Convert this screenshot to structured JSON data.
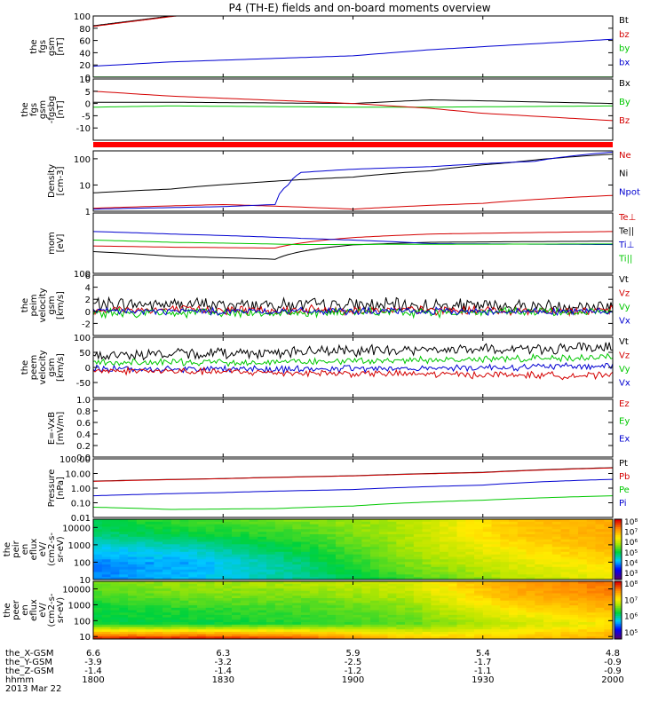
{
  "title": "P4 (TH-E) fields and on-board moments overview",
  "colors": {
    "black": "#000000",
    "red": "#d40000",
    "green": "#00c800",
    "blue": "#0000d0"
  },
  "chart_data": [
    {
      "type": "line",
      "ylabel": [
        "the",
        "fgs",
        "gsm",
        "[nT]"
      ],
      "ylim": [
        0,
        100
      ],
      "yticks": [
        {
          "v": 0,
          "label": "0"
        },
        {
          "v": 20,
          "label": "20"
        },
        {
          "v": 40,
          "label": "40"
        },
        {
          "v": 60,
          "label": "60"
        },
        {
          "v": 80,
          "label": "80"
        },
        {
          "v": 100,
          "label": "100"
        }
      ],
      "legend": [
        {
          "label": "Bt",
          "color": "#000000"
        },
        {
          "label": "bz",
          "color": "#d40000"
        },
        {
          "label": "by",
          "color": "#00c800"
        },
        {
          "label": "bx",
          "color": "#0000d0"
        }
      ],
      "series": [
        {
          "name": "Bt",
          "color": "#000000",
          "x": [
            1800,
            1830,
            1836
          ],
          "y": [
            84,
            100,
            103
          ]
        },
        {
          "name": "bz",
          "color": "#d40000",
          "x": [
            1800,
            1830,
            1836
          ],
          "y": [
            83,
            99,
            102
          ]
        },
        {
          "name": "by",
          "color": "#00c800",
          "x": [
            1800,
            2000
          ],
          "y": [
            0.5,
            0.5
          ]
        },
        {
          "name": "bx",
          "color": "#0000d0",
          "x": [
            1800,
            1830,
            1900,
            1930,
            2000
          ],
          "y": [
            18,
            25,
            35,
            45,
            62
          ]
        }
      ]
    },
    {
      "type": "line",
      "ylabel": [
        "the",
        "fgs",
        "gsm",
        "-fgsbg",
        "[nT]"
      ],
      "ylim": [
        -15,
        10
      ],
      "yticks": [
        {
          "v": -10,
          "label": "-10"
        },
        {
          "v": -5,
          "label": "-5"
        },
        {
          "v": 0,
          "label": "0"
        },
        {
          "v": 5,
          "label": "5"
        },
        {
          "v": 10,
          "label": "10"
        }
      ],
      "legend": [
        {
          "label": "Bx",
          "color": "#000000"
        },
        {
          "label": "By",
          "color": "#00c800"
        },
        {
          "label": "Bz",
          "color": "#d40000"
        }
      ],
      "flag_bar": true,
      "series": [
        {
          "name": "Bx",
          "color": "#000000",
          "x": [
            1800,
            1830,
            1900,
            1930,
            2000
          ],
          "y": [
            0.5,
            0.5,
            0,
            1.5,
            0
          ]
        },
        {
          "name": "By",
          "color": "#00c800",
          "x": [
            1800,
            1830,
            1900,
            1930,
            2000
          ],
          "y": [
            -1.5,
            -1,
            -1.5,
            -1.5,
            -1
          ]
        },
        {
          "name": "Bz",
          "color": "#d40000",
          "x": [
            1800,
            1830,
            1900,
            1930,
            1950,
            2000
          ],
          "y": [
            5,
            3,
            0,
            -2,
            -4,
            -7
          ]
        }
      ]
    },
    {
      "type": "line",
      "ylabel": [
        "Density",
        "[cm-3]"
      ],
      "scale": "log",
      "ylim": [
        1,
        200
      ],
      "yticks": [
        {
          "v": 1,
          "label": "1"
        },
        {
          "v": 10,
          "label": "10"
        },
        {
          "v": 100,
          "label": "100"
        }
      ],
      "legend": [
        {
          "label": "Ne",
          "color": "#d40000"
        },
        {
          "label": "Ni",
          "color": "#000000"
        },
        {
          "label": "Npot",
          "color": "#0000d0"
        }
      ],
      "series": [
        {
          "name": "Ne",
          "color": "#d40000",
          "x": [
            1800,
            1850,
            1900,
            1950,
            2000
          ],
          "y": [
            1.3,
            1.8,
            1.2,
            2,
            4
          ]
        },
        {
          "name": "Ni",
          "color": "#000000",
          "x": [
            1800,
            1830,
            1860,
            1900,
            1930,
            1960,
            2000
          ],
          "y": [
            5,
            7,
            12,
            20,
            35,
            70,
            150
          ]
        },
        {
          "name": "Npot",
          "color": "#0000d0",
          "x": [
            1800,
            1850,
            1870,
            1875,
            1880,
            1900,
            1930,
            1970,
            2000
          ],
          "y": [
            1.2,
            1.5,
            1.8,
            10,
            30,
            40,
            50,
            80,
            180
          ]
        }
      ]
    },
    {
      "type": "line",
      "ylabel": [
        "mom",
        "[eV]"
      ],
      "scale": "log",
      "ylim": [
        100,
        100000
      ],
      "yticks": [
        {
          "v": 100,
          "label": "100"
        }
      ],
      "legend": [
        {
          "label": "Te⊥",
          "color": "#d40000"
        },
        {
          "label": "Te||",
          "color": "#000000"
        },
        {
          "label": "Ti⊥",
          "color": "#0000d0"
        },
        {
          "label": "Ti||",
          "color": "#00c800"
        }
      ],
      "series": [
        {
          "name": "Te⊥",
          "color": "#d40000",
          "x": [
            1800,
            1830,
            1870,
            1900,
            1930,
            2000
          ],
          "y": [
            2300,
            2000,
            1800,
            6000,
            9000,
            12000
          ]
        },
        {
          "name": "Te||",
          "color": "#000000",
          "x": [
            1800,
            1830,
            1870,
            1900,
            1930,
            2000
          ],
          "y": [
            1200,
            700,
            500,
            2600,
            3500,
            4000
          ]
        },
        {
          "name": "Ti⊥",
          "color": "#0000d0",
          "x": [
            1800,
            1830,
            1880,
            1930,
            2000
          ],
          "y": [
            12000,
            9000,
            5500,
            3000,
            2700
          ]
        },
        {
          "name": "Ti||",
          "color": "#00c800",
          "x": [
            1800,
            1830,
            1880,
            1930,
            2000
          ],
          "y": [
            4500,
            3500,
            2700,
            2800,
            2900
          ]
        }
      ]
    },
    {
      "type": "line",
      "ylabel": [
        "the",
        "peim",
        "velocity",
        "gsm",
        "[km/s]"
      ],
      "ylim": [
        -4,
        6
      ],
      "yticks": [
        {
          "v": -2,
          "label": "-2"
        },
        {
          "v": 0,
          "label": "0"
        },
        {
          "v": 2,
          "label": "2"
        },
        {
          "v": 4,
          "label": "4"
        },
        {
          "v": 6,
          "label": "6"
        }
      ],
      "legend": [
        {
          "label": "Vt",
          "color": "#000000"
        },
        {
          "label": "Vz",
          "color": "#d40000"
        },
        {
          "label": "Vy",
          "color": "#00c800"
        },
        {
          "label": "Vx",
          "color": "#0000d0"
        }
      ],
      "series": [
        {
          "name": "Vt",
          "color": "#000000",
          "x": [
            1800,
            1900,
            2000
          ],
          "y": [
            1.2,
            1,
            0.8
          ],
          "noise": 1.4
        },
        {
          "name": "Vz",
          "color": "#d40000",
          "x": [
            1800,
            1900,
            2000
          ],
          "y": [
            0.3,
            0.2,
            0.1
          ],
          "noise": 0.9
        },
        {
          "name": "Vy",
          "color": "#00c800",
          "x": [
            1800,
            1900,
            2000
          ],
          "y": [
            -0.3,
            -0.2,
            -0.1
          ],
          "noise": 0.9
        },
        {
          "name": "Vx",
          "color": "#0000d0",
          "x": [
            1800,
            1900,
            2000
          ],
          "y": [
            0,
            0,
            0
          ],
          "noise": 0.7
        }
      ]
    },
    {
      "type": "line",
      "ylabel": [
        "the",
        "peem",
        "velocity",
        "gsm",
        "[km/s]"
      ],
      "ylim": [
        -100,
        100
      ],
      "yticks": [
        {
          "v": -50,
          "label": "-50"
        },
        {
          "v": 0,
          "label": "0"
        },
        {
          "v": 50,
          "label": "50"
        },
        {
          "v": 100,
          "label": "100"
        }
      ],
      "legend": [
        {
          "label": "Vt",
          "color": "#000000"
        },
        {
          "label": "Vz",
          "color": "#d40000"
        },
        {
          "label": "Vy",
          "color": "#00c800"
        },
        {
          "label": "Vx",
          "color": "#0000d0"
        }
      ],
      "series": [
        {
          "name": "Vt",
          "color": "#000000",
          "x": [
            1800,
            1900,
            2000
          ],
          "y": [
            40,
            55,
            65
          ],
          "noise": 22
        },
        {
          "name": "Vy",
          "color": "#00c800",
          "x": [
            1800,
            1900,
            2000
          ],
          "y": [
            15,
            20,
            35
          ],
          "noise": 14
        },
        {
          "name": "Vx",
          "color": "#0000d0",
          "x": [
            1800,
            1900,
            2000
          ],
          "y": [
            -5,
            -5,
            5
          ],
          "noise": 14
        },
        {
          "name": "Vz",
          "color": "#d40000",
          "x": [
            1800,
            1900,
            2000
          ],
          "y": [
            -10,
            -20,
            -28
          ],
          "noise": 14
        }
      ]
    },
    {
      "type": "line",
      "ylabel": [
        "E=-VxB",
        "[mV/m]"
      ],
      "ylim": [
        0,
        1
      ],
      "yticks": [
        {
          "v": 0,
          "label": "0.0"
        },
        {
          "v": 0.2,
          "label": "0.2"
        },
        {
          "v": 0.4,
          "label": "0.4"
        },
        {
          "v": 0.6,
          "label": "0.6"
        },
        {
          "v": 0.8,
          "label": "0.8"
        },
        {
          "v": 1,
          "label": "1.0"
        }
      ],
      "legend": [
        {
          "label": "Ez",
          "color": "#d40000"
        },
        {
          "label": "Ey",
          "color": "#00c800"
        },
        {
          "label": "Ex",
          "color": "#0000d0"
        }
      ],
      "series": []
    },
    {
      "type": "line",
      "ylabel": [
        "Pressure",
        "[nPa]"
      ],
      "scale": "log",
      "ylim": [
        0.01,
        100
      ],
      "yticks": [
        {
          "v": 0.01,
          "label": "0.01"
        },
        {
          "v": 0.1,
          "label": "0.10"
        },
        {
          "v": 1,
          "label": "1.00"
        },
        {
          "v": 10,
          "label": "10.00"
        },
        {
          "v": 100,
          "label": "100.00"
        }
      ],
      "legend": [
        {
          "label": "Pt",
          "color": "#000000"
        },
        {
          "label": "Pb",
          "color": "#d40000"
        },
        {
          "label": "Pe",
          "color": "#00c800"
        },
        {
          "label": "Pi",
          "color": "#0000d0"
        }
      ],
      "series": [
        {
          "name": "Pt",
          "color": "#000000",
          "x": [
            1800,
            1850,
            1900,
            1950,
            2000
          ],
          "y": [
            3,
            4.5,
            7,
            12,
            25
          ]
        },
        {
          "name": "Pb",
          "color": "#d40000",
          "x": [
            1800,
            1850,
            1900,
            1950,
            2000
          ],
          "y": [
            2.9,
            4.4,
            6.8,
            11.5,
            24
          ]
        },
        {
          "name": "Pe",
          "color": "#00c800",
          "x": [
            1800,
            1830,
            1870,
            1900,
            1950,
            2000
          ],
          "y": [
            0.05,
            0.035,
            0.04,
            0.06,
            0.15,
            0.3
          ]
        },
        {
          "name": "Pi",
          "color": "#0000d0",
          "x": [
            1800,
            1850,
            1900,
            1950,
            2000
          ],
          "y": [
            0.3,
            0.5,
            0.8,
            1.6,
            4
          ]
        }
      ]
    },
    {
      "type": "heatmap",
      "ylabel": [
        "the",
        "peir",
        "en",
        "eflux",
        "eV/",
        "(cm2-s-",
        "sr-eV)"
      ],
      "scale": "log",
      "ylim": [
        10,
        30000
      ],
      "yticks": [
        {
          "v": 10,
          "label": "10"
        },
        {
          "v": 100,
          "label": "100"
        },
        {
          "v": 1000,
          "label": "1000"
        },
        {
          "v": 10000,
          "label": "10000"
        }
      ],
      "colorbar": {
        "ticks": [
          "10⁸",
          "10⁷",
          "10⁶",
          "10⁵",
          "10⁴",
          "10³"
        ]
      },
      "grid": {
        "x": [
          1800,
          1840,
          1880,
          1920,
          1960,
          2000
        ],
        "rows_top_to_bottom": [
          [
            0.45,
            0.5,
            0.55,
            0.6,
            0.75,
            0.8
          ],
          [
            0.4,
            0.45,
            0.5,
            0.6,
            0.75,
            0.8
          ],
          [
            0.3,
            0.35,
            0.45,
            0.58,
            0.7,
            0.78
          ],
          [
            0.25,
            0.28,
            0.4,
            0.55,
            0.65,
            0.72
          ],
          [
            0.25,
            0.3,
            0.38,
            0.5,
            0.6,
            0.68
          ]
        ]
      }
    },
    {
      "type": "heatmap",
      "ylabel": [
        "the",
        "peer",
        "en",
        "eflux",
        "eV/",
        "(cm2-s-",
        "sr-eV)"
      ],
      "scale": "log",
      "ylim": [
        7,
        30000
      ],
      "yticks": [
        {
          "v": 10,
          "label": "10"
        },
        {
          "v": 100,
          "label": "100"
        },
        {
          "v": 1000,
          "label": "1000"
        },
        {
          "v": 10000,
          "label": "10000"
        }
      ],
      "colorbar": {
        "ticks": [
          "10⁸",
          "10⁷",
          "10⁶",
          "10⁵"
        ]
      },
      "grid": {
        "x": [
          1800,
          1840,
          1880,
          1920,
          1960,
          2000
        ],
        "rows_top_to_bottom": [
          [
            0.55,
            0.58,
            0.6,
            0.65,
            0.82,
            0.88
          ],
          [
            0.5,
            0.55,
            0.55,
            0.6,
            0.78,
            0.85
          ],
          [
            0.45,
            0.48,
            0.5,
            0.55,
            0.7,
            0.78
          ],
          [
            0.45,
            0.45,
            0.48,
            0.52,
            0.62,
            0.7
          ],
          [
            0.95,
            0.95,
            0.9,
            0.75,
            0.75,
            0.8
          ]
        ]
      }
    }
  ],
  "x_axis": {
    "xlim": [
      1800,
      2000
    ],
    "rows": [
      {
        "label": "the_X-GSM",
        "values": [
          "6.6",
          "6.3",
          "5.9",
          "5.4",
          "4.8"
        ]
      },
      {
        "label": "the_Y-GSM",
        "values": [
          "-3.9",
          "-3.2",
          "-2.5",
          "-1.7",
          "-0.9"
        ]
      },
      {
        "label": "the_Z-GSM",
        "values": [
          "-1.4",
          "-1.4",
          "-1.2",
          "-1.1",
          "-0.9"
        ]
      },
      {
        "label": "hhmm",
        "values": [
          "1800",
          "1830",
          "1900",
          "1930",
          "2000"
        ]
      }
    ],
    "tick_x": [
      1800,
      1850,
      1900,
      1950,
      2000
    ],
    "date": "2013 Mar 22"
  }
}
